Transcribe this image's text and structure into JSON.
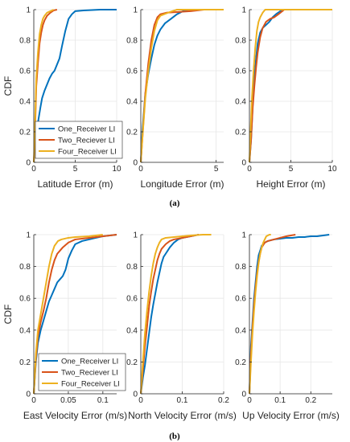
{
  "panel_labels": [
    "(a)",
    "(b)"
  ],
  "colors": {
    "one": "#0072BD",
    "two": "#D95319",
    "four": "#EDB120",
    "grid": "#e6e6e6",
    "axis": "#262626"
  },
  "chart_data": [
    {
      "type": "line",
      "xlabel": "Latitude Error (m)",
      "ylabel": "CDF",
      "xlim": [
        0,
        10
      ],
      "ylim": [
        0,
        1
      ],
      "xticks": [
        "0",
        "5",
        "10"
      ],
      "yticks": [
        "0",
        "0.2",
        "0.4",
        "0.6",
        "0.8",
        "1"
      ],
      "grid": true,
      "legend": "bottom-left",
      "series": [
        {
          "name": "One_Receiver LI",
          "x": [
            0,
            0.2,
            0.5,
            0.8,
            1.0,
            1.3,
            1.6,
            1.9,
            2.2,
            2.5,
            2.8,
            3.1,
            3.4,
            3.8,
            4.2,
            4.6,
            5.0,
            6.0,
            8.0,
            10.0
          ],
          "y": [
            0,
            0.15,
            0.26,
            0.36,
            0.42,
            0.47,
            0.51,
            0.55,
            0.58,
            0.6,
            0.64,
            0.68,
            0.76,
            0.86,
            0.94,
            0.97,
            0.99,
            0.995,
            1,
            1
          ]
        },
        {
          "name": "Two_Reciever LI",
          "x": [
            0,
            0.1,
            0.3,
            0.5,
            0.7,
            0.9,
            1.1,
            1.3,
            1.6,
            2.0,
            2.4,
            2.8
          ],
          "y": [
            0,
            0.1,
            0.5,
            0.65,
            0.78,
            0.85,
            0.9,
            0.93,
            0.96,
            0.98,
            0.995,
            1
          ]
        },
        {
          "name": "Four_Receiver LI",
          "x": [
            0,
            0.1,
            0.3,
            0.5,
            0.7,
            0.9,
            1.1,
            1.3,
            1.6,
            2.0,
            2.4
          ],
          "y": [
            0,
            0.15,
            0.55,
            0.72,
            0.84,
            0.9,
            0.94,
            0.96,
            0.98,
            0.99,
            1
          ]
        }
      ]
    },
    {
      "type": "line",
      "xlabel": "Longitude Error (m)",
      "ylabel": "",
      "xlim": [
        0,
        5.5
      ],
      "ylim": [
        0,
        1
      ],
      "xticks": [
        "0",
        "5"
      ],
      "yticks": [
        "0",
        "0.2",
        "0.4",
        "0.6",
        "0.8",
        "1"
      ],
      "grid": true,
      "series": [
        {
          "name": "One_Receiver LI",
          "x": [
            0,
            0.1,
            0.3,
            0.5,
            0.7,
            0.9,
            1.1,
            1.3,
            1.6,
            2.0,
            2.4,
            2.8,
            3.2,
            5.5
          ],
          "y": [
            0,
            0.2,
            0.45,
            0.58,
            0.68,
            0.77,
            0.83,
            0.87,
            0.91,
            0.94,
            0.97,
            0.99,
            1,
            1
          ]
        },
        {
          "name": "Two_Reciever LI",
          "x": [
            0,
            0.1,
            0.3,
            0.5,
            0.7,
            0.9,
            1.1,
            1.3,
            1.7,
            2.5,
            3.3,
            4.2,
            5.5
          ],
          "y": [
            0,
            0.15,
            0.45,
            0.65,
            0.8,
            0.9,
            0.95,
            0.97,
            0.98,
            0.985,
            0.99,
            1,
            1
          ]
        },
        {
          "name": "Four_Receiver LI",
          "x": [
            0,
            0.1,
            0.3,
            0.5,
            0.7,
            0.9,
            1.1,
            1.3,
            1.8,
            2.4,
            5.5
          ],
          "y": [
            0,
            0.15,
            0.42,
            0.6,
            0.75,
            0.86,
            0.93,
            0.96,
            0.98,
            1,
            1
          ]
        }
      ]
    },
    {
      "type": "line",
      "xlabel": "Height Error (m)",
      "ylabel": "",
      "xlim": [
        0,
        10
      ],
      "ylim": [
        0,
        1
      ],
      "xticks": [
        "0",
        "5",
        "10"
      ],
      "yticks": [
        "0",
        "0.2",
        "0.4",
        "0.6",
        "0.8",
        "1"
      ],
      "grid": true,
      "series": [
        {
          "name": "One_Receiver LI",
          "x": [
            0,
            0.2,
            0.4,
            0.6,
            0.8,
            1.0,
            1.3,
            1.6,
            2.0,
            2.4,
            2.8,
            3.2,
            3.6,
            4.0,
            10.0
          ],
          "y": [
            0,
            0.15,
            0.38,
            0.55,
            0.68,
            0.78,
            0.85,
            0.88,
            0.9,
            0.92,
            0.95,
            0.97,
            0.985,
            1,
            1
          ]
        },
        {
          "name": "Two_Reciever LI",
          "x": [
            0,
            0.2,
            0.4,
            0.6,
            0.8,
            1.0,
            1.3,
            1.6,
            2.0,
            2.5,
            3.0,
            3.5,
            4.2,
            10.0
          ],
          "y": [
            0,
            0.15,
            0.36,
            0.5,
            0.62,
            0.72,
            0.82,
            0.88,
            0.92,
            0.94,
            0.95,
            0.97,
            1,
            1
          ]
        },
        {
          "name": "Four_Receiver LI",
          "x": [
            0,
            0.1,
            0.3,
            0.5,
            0.7,
            0.9,
            1.1,
            1.3,
            1.6,
            1.9,
            10.0
          ],
          "y": [
            0,
            0.15,
            0.42,
            0.6,
            0.75,
            0.86,
            0.92,
            0.95,
            0.98,
            1,
            1
          ]
        }
      ]
    },
    {
      "type": "line",
      "xlabel": "East Velocity Error (m/s)",
      "ylabel": "CDF",
      "xlim": [
        0,
        0.12
      ],
      "ylim": [
        0,
        1
      ],
      "xticks": [
        "0",
        "0.05",
        "0.1"
      ],
      "yticks": [
        "0",
        "0.2",
        "0.4",
        "0.6",
        "0.8",
        "1"
      ],
      "grid": true,
      "legend": "bottom-right",
      "series": [
        {
          "name": "One_Receiver LI",
          "x": [
            0,
            0.003,
            0.006,
            0.01,
            0.014,
            0.018,
            0.022,
            0.026,
            0.03,
            0.034,
            0.038,
            0.042,
            0.046,
            0.05,
            0.055,
            0.06,
            0.07,
            0.08,
            0.09,
            0.1,
            0.12
          ],
          "y": [
            0,
            0.2,
            0.32,
            0.4,
            0.46,
            0.52,
            0.58,
            0.62,
            0.66,
            0.7,
            0.72,
            0.74,
            0.78,
            0.85,
            0.9,
            0.94,
            0.96,
            0.97,
            0.98,
            0.99,
            1
          ]
        },
        {
          "name": "Two_Reciever LI",
          "x": [
            0,
            0.003,
            0.006,
            0.01,
            0.014,
            0.018,
            0.022,
            0.026,
            0.03,
            0.034,
            0.038,
            0.042,
            0.05,
            0.06,
            0.08,
            0.1,
            0.12
          ],
          "y": [
            0,
            0.22,
            0.36,
            0.45,
            0.52,
            0.6,
            0.7,
            0.78,
            0.84,
            0.88,
            0.9,
            0.92,
            0.95,
            0.97,
            0.98,
            0.99,
            1
          ]
        },
        {
          "name": "Four_Receiver LI",
          "x": [
            0,
            0.003,
            0.006,
            0.01,
            0.014,
            0.018,
            0.022,
            0.026,
            0.03,
            0.035,
            0.04,
            0.05,
            0.06,
            0.08,
            0.1
          ],
          "y": [
            0,
            0.25,
            0.4,
            0.5,
            0.6,
            0.7,
            0.8,
            0.88,
            0.93,
            0.96,
            0.97,
            0.98,
            0.985,
            0.99,
            1
          ]
        }
      ]
    },
    {
      "type": "line",
      "xlabel": "North Velocity Error (m/s)",
      "ylabel": "",
      "xlim": [
        0,
        0.2
      ],
      "ylim": [
        0,
        1
      ],
      "xticks": [
        "0",
        "0.1",
        "0.2"
      ],
      "yticks": [
        "0",
        "0.2",
        "0.4",
        "0.6",
        "0.8",
        "1"
      ],
      "grid": true,
      "series": [
        {
          "name": "One_Receiver LI",
          "x": [
            0,
            0.005,
            0.01,
            0.015,
            0.02,
            0.025,
            0.03,
            0.035,
            0.04,
            0.045,
            0.05,
            0.055,
            0.06,
            0.065,
            0.07,
            0.08,
            0.09,
            0.1,
            0.11,
            0.12,
            0.13,
            0.14
          ],
          "y": [
            0,
            0.1,
            0.18,
            0.28,
            0.38,
            0.48,
            0.56,
            0.63,
            0.7,
            0.76,
            0.82,
            0.86,
            0.88,
            0.9,
            0.92,
            0.95,
            0.97,
            0.98,
            0.985,
            0.99,
            0.995,
            1
          ]
        },
        {
          "name": "Two_Reciever LI",
          "x": [
            0,
            0.005,
            0.01,
            0.015,
            0.02,
            0.025,
            0.03,
            0.035,
            0.04,
            0.045,
            0.05,
            0.06,
            0.07,
            0.08,
            0.1,
            0.12,
            0.14
          ],
          "y": [
            0,
            0.15,
            0.3,
            0.42,
            0.55,
            0.64,
            0.72,
            0.78,
            0.84,
            0.88,
            0.91,
            0.94,
            0.96,
            0.97,
            0.98,
            0.99,
            1
          ]
        },
        {
          "name": "Four_Receiver LI",
          "x": [
            0,
            0.005,
            0.01,
            0.015,
            0.02,
            0.025,
            0.03,
            0.035,
            0.04,
            0.045,
            0.05,
            0.06,
            0.08,
            0.1,
            0.12,
            0.15,
            0.17
          ],
          "y": [
            0,
            0.2,
            0.38,
            0.52,
            0.64,
            0.74,
            0.82,
            0.88,
            0.92,
            0.95,
            0.97,
            0.98,
            0.985,
            0.99,
            0.995,
            1,
            1
          ]
        }
      ]
    },
    {
      "type": "line",
      "xlabel": "Up Velocity Error (m/s)",
      "ylabel": "",
      "xlim": [
        0,
        0.27
      ],
      "ylim": [
        0,
        1
      ],
      "xticks": [
        "0",
        "0.1",
        "0.2"
      ],
      "yticks": [
        "0",
        "0.2",
        "0.4",
        "0.6",
        "0.8",
        "1"
      ],
      "grid": true,
      "series": [
        {
          "name": "One_Receiver LI",
          "x": [
            0,
            0.005,
            0.01,
            0.015,
            0.02,
            0.025,
            0.03,
            0.035,
            0.04,
            0.05,
            0.06,
            0.08,
            0.1,
            0.12,
            0.14,
            0.16,
            0.18,
            0.2,
            0.22,
            0.24,
            0.26
          ],
          "y": [
            0,
            0.3,
            0.45,
            0.6,
            0.7,
            0.8,
            0.87,
            0.9,
            0.93,
            0.95,
            0.96,
            0.97,
            0.975,
            0.98,
            0.98,
            0.985,
            0.985,
            0.99,
            0.99,
            0.995,
            1
          ]
        },
        {
          "name": "Two_Reciever LI",
          "x": [
            0,
            0.005,
            0.01,
            0.015,
            0.02,
            0.025,
            0.03,
            0.035,
            0.04,
            0.05,
            0.06,
            0.08,
            0.1,
            0.12,
            0.15
          ],
          "y": [
            0,
            0.25,
            0.42,
            0.56,
            0.67,
            0.76,
            0.83,
            0.88,
            0.92,
            0.95,
            0.96,
            0.97,
            0.98,
            0.99,
            1
          ]
        },
        {
          "name": "Four_Receiver LI",
          "x": [
            0,
            0.005,
            0.01,
            0.015,
            0.02,
            0.025,
            0.03,
            0.035,
            0.04,
            0.045,
            0.05,
            0.055,
            0.06,
            0.065,
            0.07
          ],
          "y": [
            0,
            0.2,
            0.38,
            0.52,
            0.64,
            0.74,
            0.82,
            0.88,
            0.92,
            0.95,
            0.97,
            0.99,
            0.995,
            1,
            1
          ]
        }
      ]
    }
  ]
}
